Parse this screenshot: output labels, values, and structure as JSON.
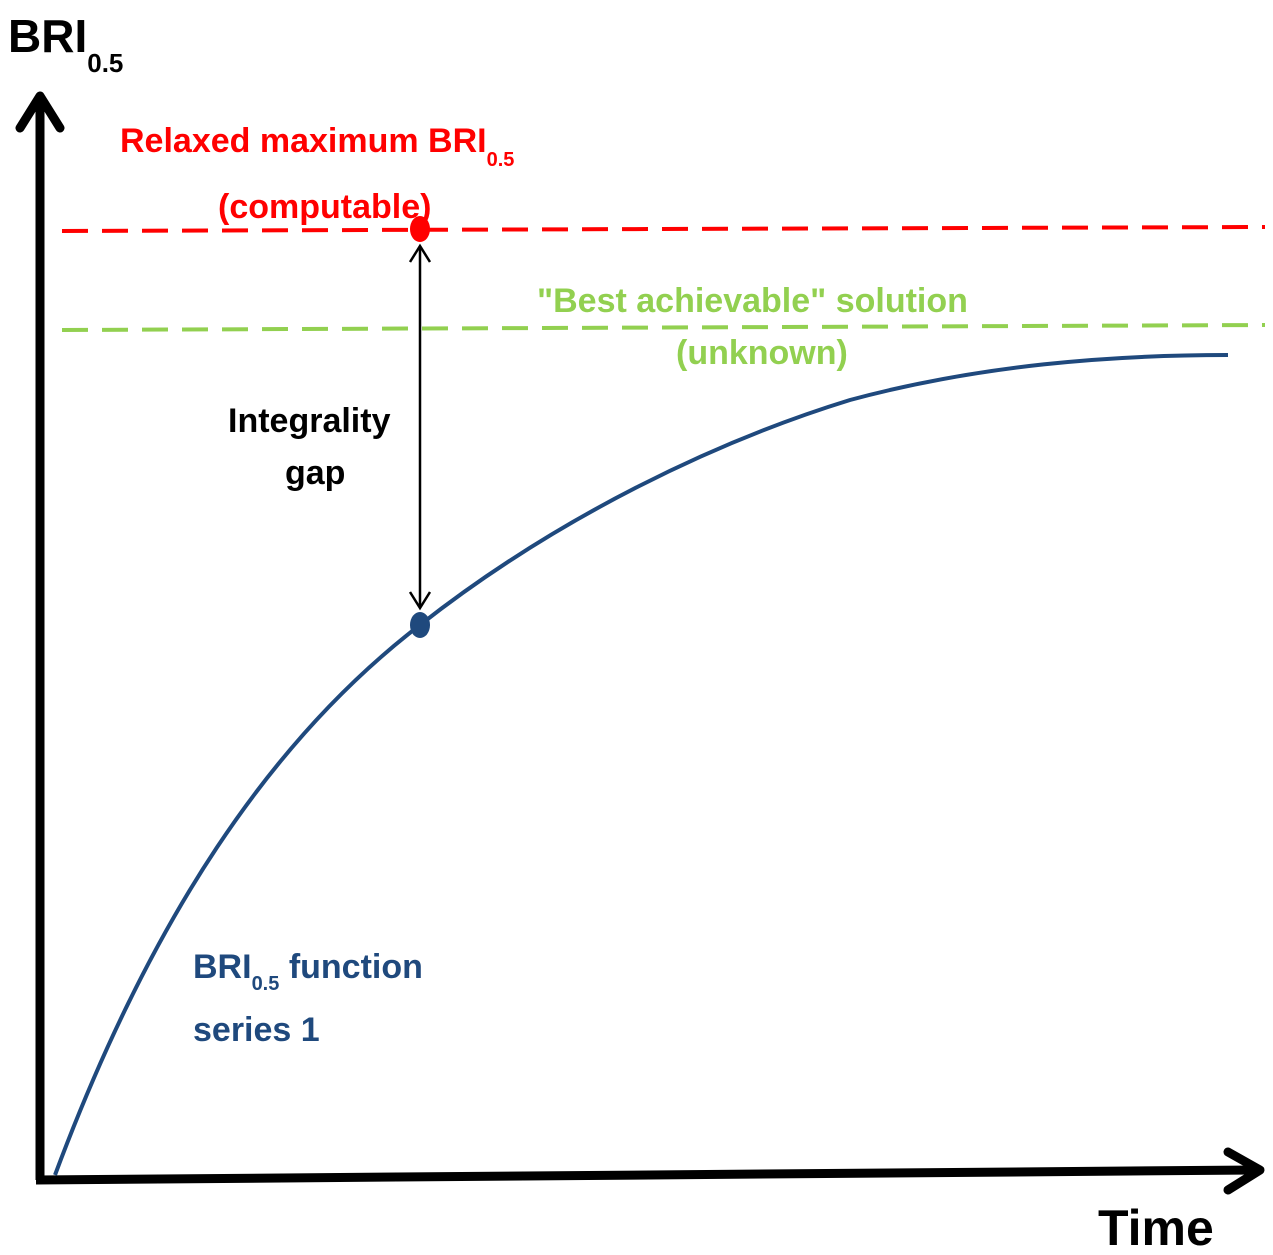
{
  "axes": {
    "y_label_main": "BRI",
    "y_label_sub": "0.5",
    "x_label": "Time"
  },
  "relaxed": {
    "line1_main": "Relaxed maximum BRI",
    "line1_sub": "0.5",
    "line2": "(computable)",
    "color": "#ff0000"
  },
  "best": {
    "line1": "\"Best achievable\" solution",
    "line2": "(unknown)",
    "color": "#92d050"
  },
  "gap": {
    "line1": "Integrality",
    "line2": "gap"
  },
  "curve": {
    "label_main": "BRI",
    "label_sub": "0.5",
    "label_main_suffix": " function",
    "label_line2": "series 1",
    "color": "#1f497d"
  }
}
